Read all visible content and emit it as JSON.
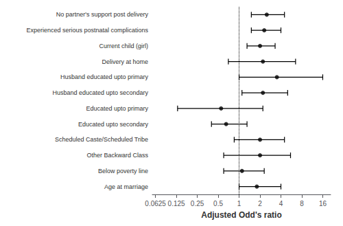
{
  "chart_data": {
    "type": "forest",
    "categories": [
      "No partner's support post delivery",
      "Experienced serious postnatal complications",
      "Current child (girl)",
      "Delivery at home",
      "Husband educated upto primary",
      "Husband educated upto secondary",
      "Educated upto primary",
      "Educated upto secondary",
      "Scheduled Caste/Scheduled Tribe",
      "Other Backward Class",
      "Below poverty line",
      "Age at marriage"
    ],
    "values": [
      2.5,
      2.3,
      2.0,
      2.2,
      3.5,
      2.2,
      0.55,
      0.65,
      2.0,
      2.0,
      1.1,
      1.8
    ],
    "ci_low": [
      1.5,
      1.5,
      1.3,
      0.7,
      1.0,
      1.1,
      0.13,
      0.4,
      0.85,
      0.6,
      0.6,
      1.0
    ],
    "ci_high": [
      4.5,
      4.0,
      3.3,
      6.5,
      16.0,
      5.0,
      2.2,
      1.3,
      4.5,
      5.5,
      2.3,
      4.0
    ],
    "xlabel": "Adjusted Odd's ratio",
    "xlim": [
      0.05625,
      20.8
    ],
    "xticks": [
      0.0625,
      0.125,
      0.25,
      0.5,
      1,
      2,
      4,
      8,
      16
    ],
    "log": "x",
    "reference_line": 1.0,
    "color": "black",
    "grid": false
  }
}
